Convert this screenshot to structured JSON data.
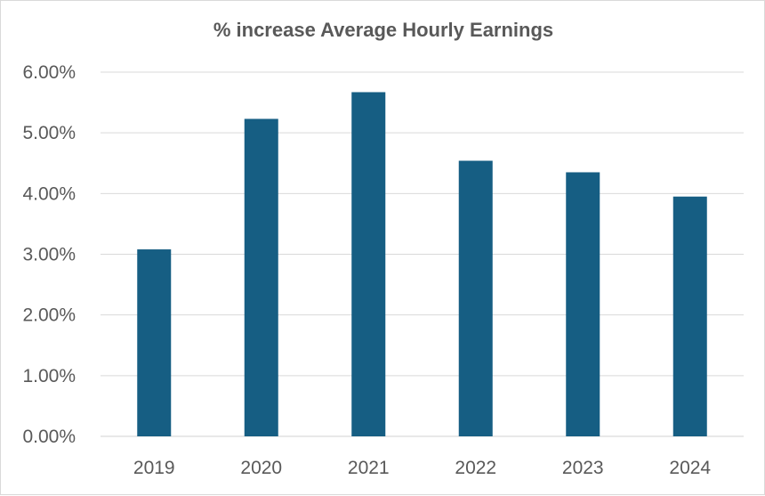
{
  "chart_data": {
    "type": "bar",
    "title": "% increase Average Hourly Earnings",
    "xlabel": "",
    "ylabel": "",
    "categories": [
      "2019",
      "2020",
      "2021",
      "2022",
      "2023",
      "2024"
    ],
    "values": [
      0.0308,
      0.0523,
      0.0567,
      0.0454,
      0.0435,
      0.0395
    ],
    "value_format": "percent_2dp",
    "ylim": [
      0,
      0.06
    ],
    "y_ticks": [
      0,
      0.01,
      0.02,
      0.03,
      0.04,
      0.05,
      0.06
    ],
    "y_tick_labels": [
      "0.00%",
      "1.00%",
      "2.00%",
      "3.00%",
      "4.00%",
      "5.00%",
      "6.00%"
    ],
    "grid": true,
    "legend": "none",
    "colors": {
      "bar": "#165E83",
      "grid": "#d9d9d9",
      "text": "#595959"
    }
  }
}
